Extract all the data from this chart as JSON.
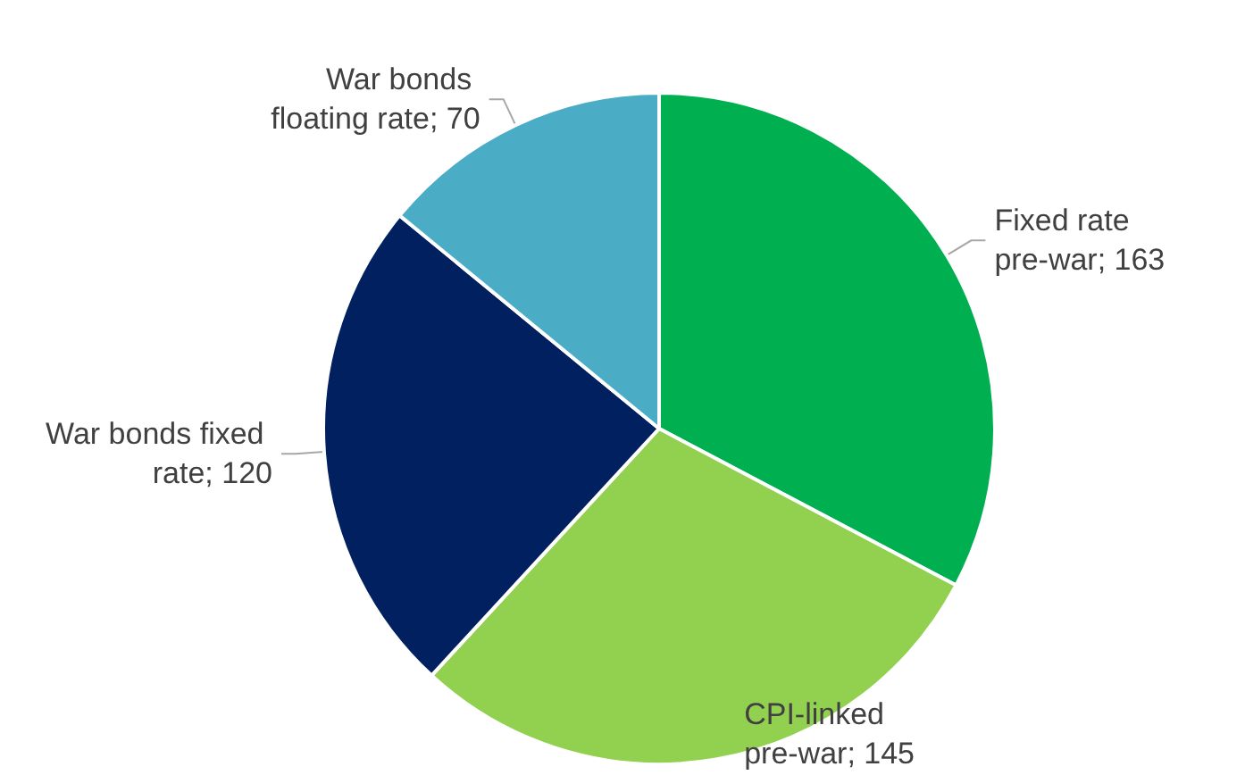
{
  "chart_data": {
    "type": "pie",
    "categories": [
      "Fixed rate pre-war; 163",
      "CPI-linked pre-war; 145",
      "War bonds fixed rate; 120",
      "War bonds floating rate; 70"
    ],
    "values": [
      163,
      145,
      120,
      70
    ],
    "colors": [
      "#00b050",
      "#92d050",
      "#002060",
      "#4bacc6"
    ]
  }
}
